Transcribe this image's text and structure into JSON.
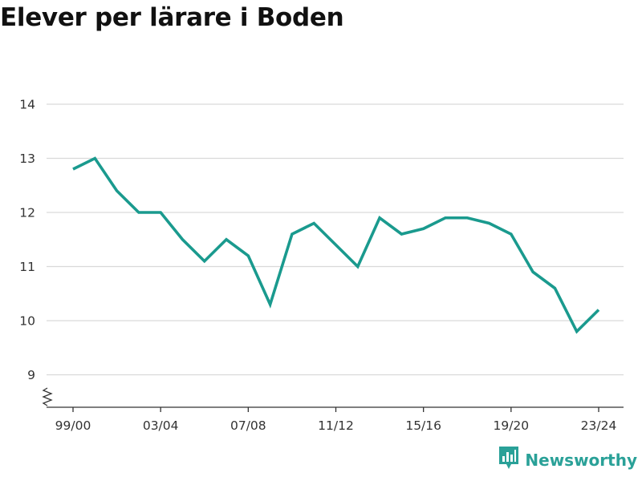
{
  "title": "Elever per lärare i Boden",
  "brand": {
    "name": "Newsworthy",
    "icon": "bar-chart-logo-icon"
  },
  "colors": {
    "line": "#1a9a8e",
    "grid": "#d9d9d9",
    "axis": "#333333",
    "brand": "#2aa198"
  },
  "chart_data": {
    "type": "line",
    "title": "Elever per lärare i Boden",
    "xlabel": "",
    "ylabel": "",
    "x": [
      "99/00",
      "00/01",
      "01/02",
      "02/03",
      "03/04",
      "04/05",
      "05/06",
      "06/07",
      "07/08",
      "08/09",
      "09/10",
      "10/11",
      "11/12",
      "12/13",
      "13/14",
      "14/15",
      "15/16",
      "16/17",
      "17/18",
      "18/19",
      "19/20",
      "20/21",
      "21/22",
      "22/23",
      "23/24"
    ],
    "x_tick_labels": [
      "99/00",
      "03/04",
      "07/08",
      "11/12",
      "15/16",
      "19/20",
      "23/24"
    ],
    "series": [
      {
        "values": [
          12.8,
          13.0,
          12.4,
          12.0,
          12.0,
          11.5,
          11.1,
          11.5,
          11.2,
          10.3,
          11.6,
          11.8,
          11.4,
          11.0,
          11.9,
          11.6,
          11.7,
          11.9,
          11.9,
          11.8,
          11.6,
          10.9,
          10.6,
          9.8,
          10.2
        ]
      }
    ],
    "y_ticks": [
      9,
      10,
      11,
      12,
      13,
      14
    ],
    "ylim": [
      8.4,
      14
    ],
    "y_axis_break": true,
    "grid": "horizontal",
    "legend": "none"
  }
}
